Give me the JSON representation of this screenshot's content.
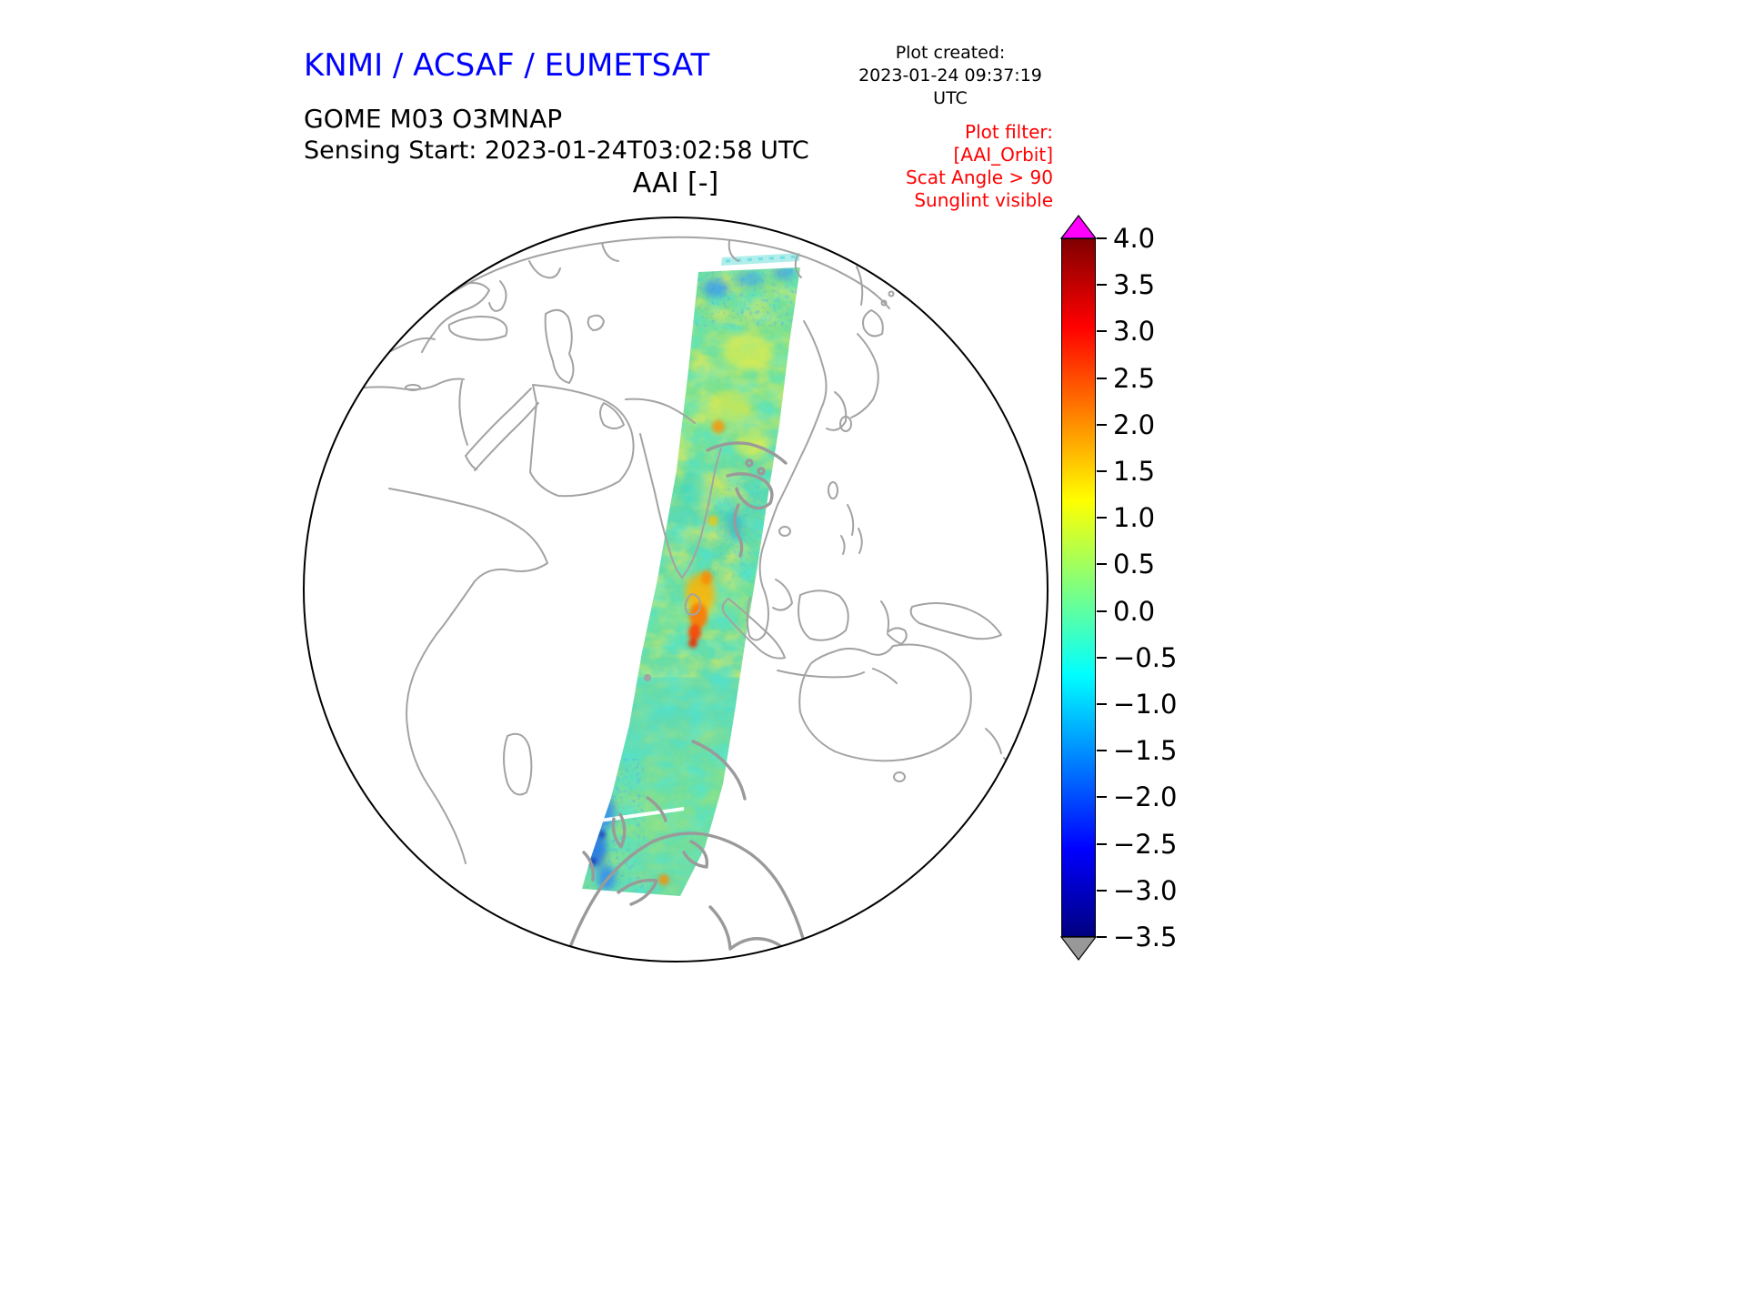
{
  "header": {
    "org_title": "KNMI / ACSAF / EUMETSAT",
    "plot_created_label": "Plot created:",
    "plot_created_value": "2023-01-24 09:37:19 UTC",
    "product_name": "GOME M03 O3MNAP",
    "sensing_start": "Sensing Start: 2023-01-24T03:02:58 UTC",
    "map_title": "AAI [-]",
    "plot_filter_lines": [
      "Plot filter:",
      "[AAI_Orbit]",
      "Scat Angle > 90",
      "Sunglint visible"
    ]
  },
  "colors": {
    "org_title_blue": "#0000ff",
    "filter_red": "#ff0000",
    "coastline_gray": "#a3a3a3",
    "globe_outline": "#000000",
    "colorbar_over": "#ff00ff",
    "colorbar_under": "#989898"
  },
  "chart_data": {
    "type": "heatmap",
    "title": "AAI [-]",
    "instrument": "GOME M03 O3MNAP",
    "sensing_start": "2023-01-24T03:02:58 UTC",
    "plot_created": "2023-01-24 09:37:19 UTC",
    "projection": "orthographic globe centered on the Indian Ocean",
    "colorbar": {
      "vmin": -3.5,
      "vmax": 4.0,
      "tick_step": 0.5,
      "ticks": [
        4.0,
        3.5,
        3.0,
        2.5,
        2.0,
        1.5,
        1.0,
        0.5,
        0.0,
        -0.5,
        -1.0,
        -1.5,
        -2.0,
        -2.5,
        -3.0,
        -3.5
      ],
      "tick_labels": [
        "4.0",
        "3.5",
        "3.0",
        "2.5",
        "2.0",
        "1.5",
        "1.0",
        "0.5",
        "0.0",
        "−0.5",
        "−1.0",
        "−1.5",
        "−2.0",
        "−2.5",
        "−3.0",
        "−3.5"
      ],
      "colormap": "jet",
      "over_color": "#ff00ff",
      "under_color": "#989898",
      "extend": "both"
    },
    "swath": {
      "description": "Single GOME-2 (Metop-B) orbit swath crossing the visible hemisphere from north of Siberia south-southwest to Antarctica",
      "typical_values": "mostly between −0.5 and +0.5 (green/cyan)",
      "features": [
        "yellow patches (AAI ≈ 1) in the northern half of the swath",
        "orange-red maxima (AAI ≈ 2 to 2.5) near the Bay of Bengal region",
        "blue minima (AAI ≈ −1.5) along the northern swath edge and near Antarctica",
        "thin white data gap across the swath just north of the Antarctic coast"
      ]
    },
    "filters_applied": [
      "AAI_Orbit",
      "Scat Angle > 90",
      "Sunglint visible"
    ]
  }
}
